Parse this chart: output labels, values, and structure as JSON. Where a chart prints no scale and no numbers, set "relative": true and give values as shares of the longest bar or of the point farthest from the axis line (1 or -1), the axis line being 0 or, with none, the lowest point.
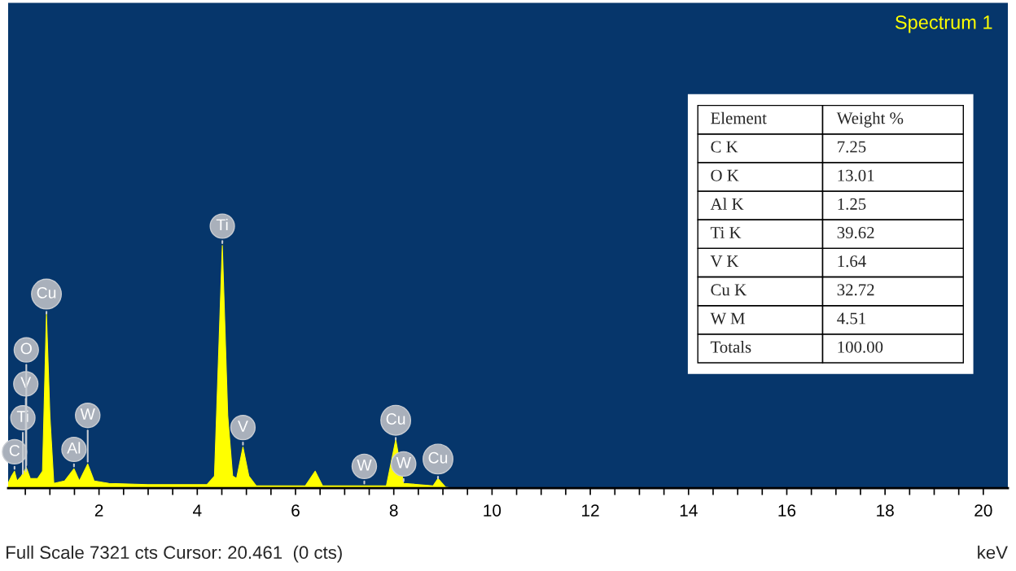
{
  "chart_data": [
    {
      "type": "area",
      "title": "Spectrum 1",
      "xlabel": "keV",
      "relative": true,
      "xlim": [
        0.15,
        20.5
      ],
      "xticks": [
        {
          "value": 0.5,
          "label": null
        },
        {
          "value": 1,
          "label": null
        },
        {
          "value": 1.5,
          "label": null
        },
        2,
        {
          "value": 2.5,
          "label": null
        },
        {
          "value": 3,
          "label": null
        },
        {
          "value": 3.5,
          "label": null
        },
        4,
        {
          "value": 4.5,
          "label": null
        },
        {
          "value": 5,
          "label": null
        },
        {
          "value": 5.5,
          "label": null
        },
        6,
        {
          "value": 6.5,
          "label": null
        },
        {
          "value": 7,
          "label": null
        },
        {
          "value": 7.5,
          "label": null
        },
        8,
        {
          "value": 8.5,
          "label": null
        },
        {
          "value": 9,
          "label": null
        },
        {
          "value": 9.5,
          "label": null
        },
        10,
        {
          "value": 10.5,
          "label": null
        },
        {
          "value": 11,
          "label": null
        },
        {
          "value": 11.5,
          "label": null
        },
        12,
        {
          "value": 12.5,
          "label": null
        },
        {
          "value": 13,
          "label": null
        },
        {
          "value": 13.5,
          "label": null
        },
        14,
        {
          "value": 14.5,
          "label": null
        },
        {
          "value": 15,
          "label": null
        },
        {
          "value": 15.5,
          "label": null
        },
        16,
        {
          "value": 16.5,
          "label": null
        },
        {
          "value": 17,
          "label": null
        },
        {
          "value": 17.5,
          "label": null
        },
        18,
        {
          "value": 18.5,
          "label": null
        },
        {
          "value": 19,
          "label": null
        },
        {
          "value": 19.5,
          "label": null
        },
        20
      ],
      "series": [
        {
          "color": "#ffff00",
          "x": [
            0.15,
            0.22,
            0.28,
            0.33,
            0.42,
            0.52,
            0.6,
            0.75,
            0.85,
            0.93,
            1.0,
            1.08,
            1.3,
            1.49,
            1.6,
            1.77,
            1.9,
            2.2,
            3.0,
            4.2,
            4.35,
            4.51,
            4.62,
            4.72,
            4.8,
            4.93,
            5.05,
            5.2,
            6.2,
            6.4,
            6.55,
            7.6,
            7.85,
            8.04,
            8.2,
            8.8,
            8.9,
            9.05,
            9.2,
            20.46
          ],
          "values": [
            0.02,
            0.05,
            0.07,
            0.03,
            0.05,
            0.085,
            0.04,
            0.04,
            0.07,
            0.72,
            0.3,
            0.02,
            0.03,
            0.08,
            0.03,
            0.1,
            0.03,
            0.02,
            0.015,
            0.015,
            0.05,
            1.0,
            0.3,
            0.05,
            0.04,
            0.17,
            0.05,
            0.01,
            0.01,
            0.07,
            0.01,
            0.01,
            0.01,
            0.2,
            0.02,
            0.01,
            0.04,
            0.005,
            0,
            0
          ]
        }
      ],
      "annotations": [
        {
          "text": "C",
          "x": 0.28,
          "y": 0.07
        },
        {
          "text": "Ti",
          "x": 0.45,
          "y": 0.05
        },
        {
          "text": "V",
          "x": 0.51,
          "y": 0.06
        },
        {
          "text": "O",
          "x": 0.52,
          "y": 0.085
        },
        {
          "text": "Cu",
          "x": 0.93,
          "y": 0.72
        },
        {
          "text": "Al",
          "x": 1.49,
          "y": 0.08
        },
        {
          "text": "W",
          "x": 1.77,
          "y": 0.1
        },
        {
          "text": "Ti",
          "x": 4.51,
          "y": 1.0
        },
        {
          "text": "V",
          "x": 4.93,
          "y": 0.17
        },
        {
          "text": "W",
          "x": 7.4,
          "y": 0.01
        },
        {
          "text": "Cu",
          "x": 8.04,
          "y": 0.2
        },
        {
          "text": "W",
          "x": 8.2,
          "y": 0.02
        },
        {
          "text": "Cu",
          "x": 8.9,
          "y": 0.04
        },
        "Full Scale 7321 cts Cursor: 20.461  (0 cts)"
      ]
    },
    {
      "type": "other",
      "xlabel": "Element",
      "ylabel": "Weight %",
      "categories": [
        "C K",
        "O K",
        "Al K",
        "Ti K",
        "V K",
        "Cu K",
        "W M",
        "Totals"
      ],
      "value_labels": [
        "7.25",
        "13.01",
        "1.25",
        "39.62",
        "1.64",
        "32.72",
        "4.51",
        "100.00"
      ]
    }
  ]
}
